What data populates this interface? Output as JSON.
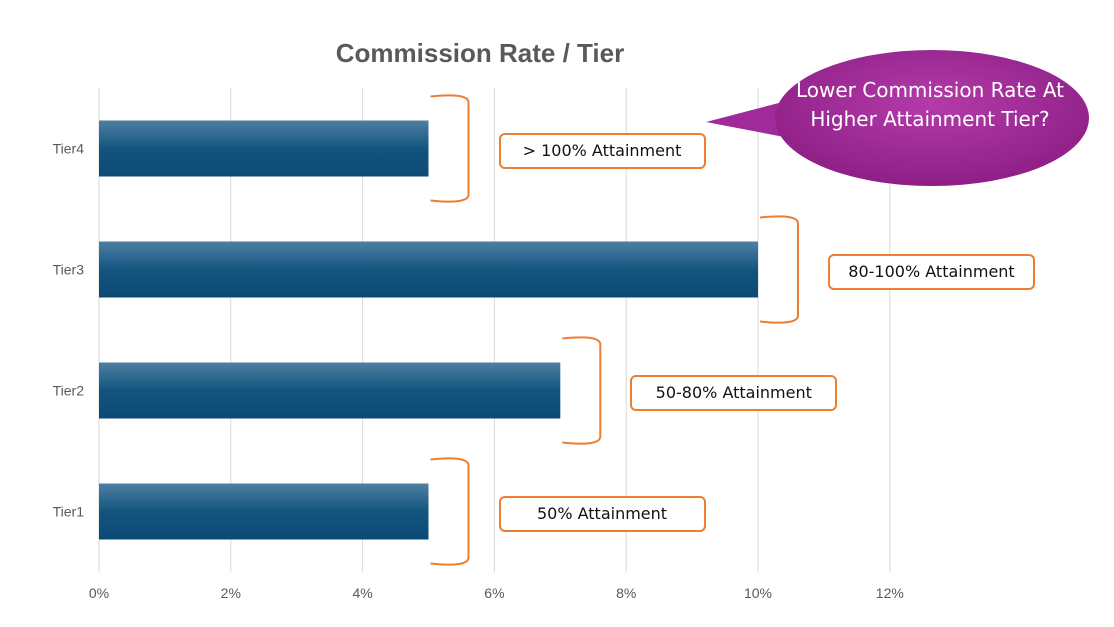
{
  "chart_data": {
    "type": "bar",
    "orientation": "horizontal",
    "title": "Commission Rate / Tier",
    "categories": [
      "Tier1",
      "Tier2",
      "Tier3",
      "Tier4"
    ],
    "values": [
      0.05,
      0.07,
      0.1,
      0.05
    ],
    "xlim": [
      0,
      0.14
    ],
    "x_ticks": [
      "0%",
      "2%",
      "4%",
      "6%",
      "8%",
      "10%",
      "12%"
    ],
    "grid": "vertical",
    "bar_color": "#1F5C85",
    "annotations": [
      {
        "category": "Tier4",
        "text": "> 100% Attainment"
      },
      {
        "category": "Tier3",
        "text": "80-100% Attainment"
      },
      {
        "category": "Tier2",
        "text": "50-80% Attainment"
      },
      {
        "category": "Tier1",
        "text": "50% Attainment"
      }
    ],
    "callout": "Lower Commission Rate At Higher Attainment Tier?",
    "bracket_color": "#ED7D31",
    "callout_color": "#A02A9A"
  }
}
